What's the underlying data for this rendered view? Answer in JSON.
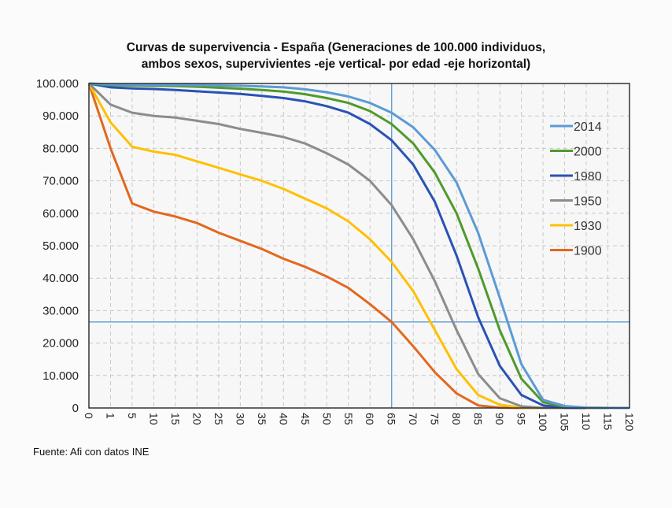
{
  "chart_data": {
    "type": "line",
    "title": "Curvas de supervivencia - España (Generaciones de 100.000 individuos,",
    "title_line2": "ambos sexos, supervivientes -eje vertical- por edad -eje horizontal)",
    "xlabel": "",
    "ylabel": "",
    "categories": [
      "0",
      "1",
      "5",
      "10",
      "15",
      "20",
      "25",
      "30",
      "35",
      "40",
      "45",
      "50",
      "55",
      "60",
      "65",
      "70",
      "75",
      "80",
      "85",
      "90",
      "95",
      "100",
      "105",
      "110",
      "115",
      "120"
    ],
    "y_ticks": [
      "0",
      "10.000",
      "20.000",
      "30.000",
      "40.000",
      "50.000",
      "60.000",
      "70.000",
      "80.000",
      "90.000",
      "100.000"
    ],
    "ylim": [
      0,
      100000
    ],
    "grid": true,
    "legend_position": "right",
    "reference_lines": {
      "x_category": "65",
      "y_value": 26500,
      "color": "#5b9bd5"
    },
    "series": [
      {
        "name": "2014",
        "color": "#5b9bd5",
        "values": [
          100000,
          99700,
          99650,
          99600,
          99550,
          99500,
          99400,
          99300,
          99100,
          98800,
          98200,
          97300,
          96000,
          94000,
          91000,
          86500,
          79500,
          69500,
          54000,
          34000,
          13500,
          2500,
          600,
          100,
          20,
          0
        ]
      },
      {
        "name": "2000",
        "color": "#4f9a2c",
        "values": [
          100000,
          99500,
          99400,
          99300,
          99200,
          99000,
          98700,
          98400,
          98000,
          97500,
          96700,
          95500,
          94000,
          91500,
          87500,
          81500,
          72500,
          60000,
          43000,
          24000,
          9000,
          1800,
          400,
          100,
          0,
          null
        ]
      },
      {
        "name": "1980",
        "color": "#2a52b5",
        "values": [
          100000,
          98800,
          98500,
          98300,
          98000,
          97600,
          97200,
          96800,
          96200,
          95500,
          94500,
          93000,
          91000,
          87500,
          82500,
          75000,
          63500,
          47000,
          28000,
          13000,
          4000,
          800,
          100,
          0,
          null,
          null
        ]
      },
      {
        "name": "1950",
        "color": "#8c8c8c",
        "values": [
          100000,
          93500,
          91000,
          90000,
          89500,
          88500,
          87500,
          86000,
          84800,
          83500,
          81500,
          78500,
          75000,
          70000,
          62500,
          52000,
          39000,
          24000,
          10500,
          3000,
          500,
          0,
          0,
          0,
          null,
          null
        ]
      },
      {
        "name": "1930",
        "color": "#ffc000",
        "values": [
          100000,
          88000,
          80500,
          79000,
          78000,
          76000,
          74000,
          72000,
          70000,
          67500,
          64500,
          61500,
          57500,
          52000,
          45000,
          36000,
          24000,
          12000,
          4000,
          1000,
          100,
          0,
          0,
          0,
          0,
          null
        ]
      },
      {
        "name": "1900",
        "color": "#e2681f",
        "values": [
          100000,
          80000,
          63000,
          60500,
          59000,
          57000,
          54000,
          51500,
          49000,
          46000,
          43500,
          40500,
          37000,
          32000,
          26500,
          19000,
          11000,
          4500,
          800,
          100,
          0,
          0,
          0,
          0,
          0,
          null
        ]
      }
    ]
  },
  "source": "Fuente: Afi con datos INE"
}
